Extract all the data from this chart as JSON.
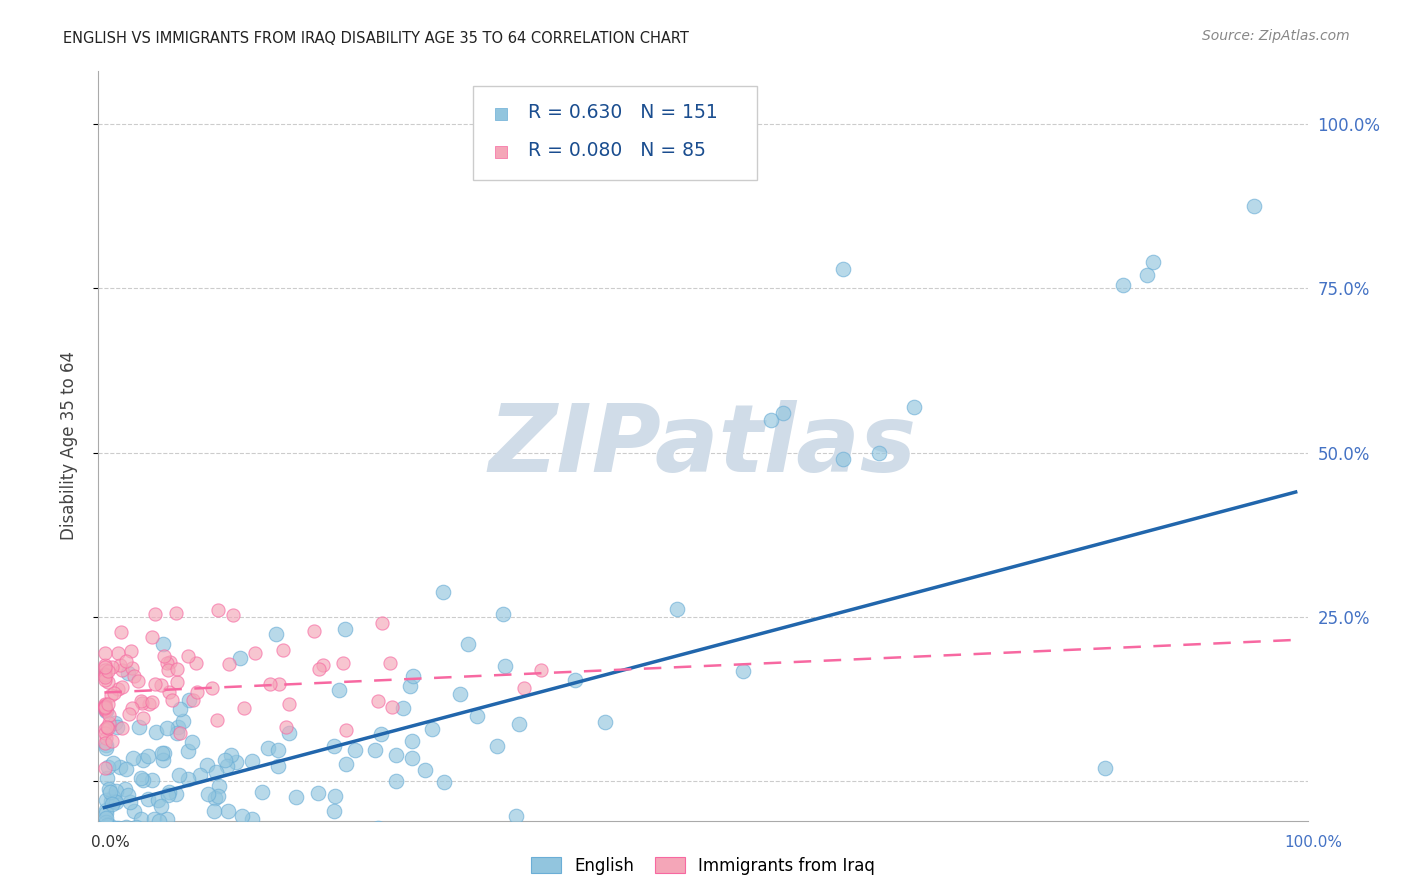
{
  "title": "ENGLISH VS IMMIGRANTS FROM IRAQ DISABILITY AGE 35 TO 64 CORRELATION CHART",
  "source": "Source: ZipAtlas.com",
  "ylabel": "Disability Age 35 to 64",
  "legend_english": "English",
  "legend_iraq": "Immigrants from Iraq",
  "R_english": 0.63,
  "N_english": 151,
  "R_iraq": 0.08,
  "N_iraq": 85,
  "english_color": "#92c5de",
  "iraq_color": "#f4a6b8",
  "english_edge_color": "#6baed6",
  "iraq_edge_color": "#f768a1",
  "english_line_color": "#2166ac",
  "iraq_line_color": "#f768a1",
  "watermark_text": "ZIPatlas",
  "watermark_color": "#d0dce8",
  "ytick_values": [
    0.0,
    0.25,
    0.5,
    0.75,
    1.0
  ],
  "ytick_labels": [
    "",
    "25.0%",
    "50.0%",
    "75.0%",
    "100.0%"
  ],
  "right_tick_color": "#4472C4",
  "xlim": [
    -0.005,
    1.01
  ],
  "ylim": [
    -0.06,
    1.08
  ],
  "en_line_x0": 0.0,
  "en_line_y0": -0.04,
  "en_line_x1": 1.0,
  "en_line_y1": 0.44,
  "iq_line_x0": 0.0,
  "iq_line_y0": 0.135,
  "iq_line_x1": 1.0,
  "iq_line_y1": 0.215
}
